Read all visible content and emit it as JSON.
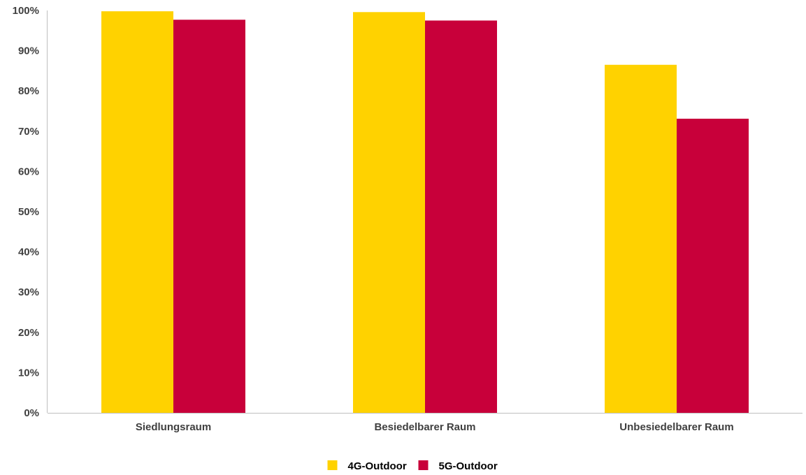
{
  "chart_data": {
    "type": "bar",
    "categories": [
      "Siedlungsraum",
      "Besiedelbarer Raum",
      "Unbesiedelbarer Raum"
    ],
    "series": [
      {
        "name": "4G-Outdoor",
        "values": [
          99.8,
          99.6,
          86.5
        ],
        "color": "#FFD200"
      },
      {
        "name": "5G-Outdoor",
        "values": [
          97.7,
          97.5,
          73.1
        ],
        "color": "#C8003A"
      }
    ],
    "ylim": [
      0,
      100
    ],
    "yticks": [
      0,
      10,
      20,
      30,
      40,
      50,
      60,
      70,
      80,
      90,
      100
    ],
    "ytick_labels": [
      "0%",
      "10%",
      "20%",
      "30%",
      "40%",
      "50%",
      "60%",
      "70%",
      "80%",
      "90%",
      "100%"
    ],
    "grid": false,
    "legend_position": "bottom-center"
  }
}
